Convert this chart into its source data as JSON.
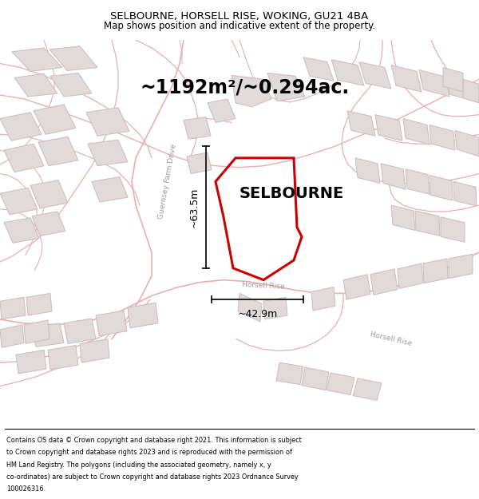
{
  "title": "SELBOURNE, HORSELL RISE, WOKING, GU21 4BA",
  "subtitle": "Map shows position and indicative extent of the property.",
  "area_label": "~1192m²/~0.294ac.",
  "property_label": "SELBOURNE",
  "dim_height": "~63.5m",
  "dim_width": "~42.9m",
  "road_label_left": "Guernsey Farm Drive",
  "road_label_bottom": "Horsell Rise",
  "road_label_bottom2": "Horsell Rise",
  "footer_lines": [
    "Contains OS data © Crown copyright and database right 2021. This information is subject",
    "to Crown copyright and database rights 2023 and is reproduced with the permission of",
    "HM Land Registry. The polygons (including the associated geometry, namely x, y",
    "co-ordinates) are subject to Crown copyright and database rights 2023 Ordnance Survey",
    "100026316."
  ],
  "map_bg": "#f7f4f4",
  "road_color": "#e8b0b0",
  "block_fill": "#e0dada",
  "block_edge": "#ccbcbc",
  "property_color": "#cc0000",
  "dim_color": "#111111",
  "title_fontsize": 9.5,
  "subtitle_fontsize": 8.5,
  "area_fontsize": 17,
  "property_fontsize": 14,
  "dim_fontsize": 9,
  "road_label_fontsize": 6.5,
  "footer_fontsize": 5.9,
  "fig_width": 6.0,
  "fig_height": 6.25,
  "dpi": 100
}
